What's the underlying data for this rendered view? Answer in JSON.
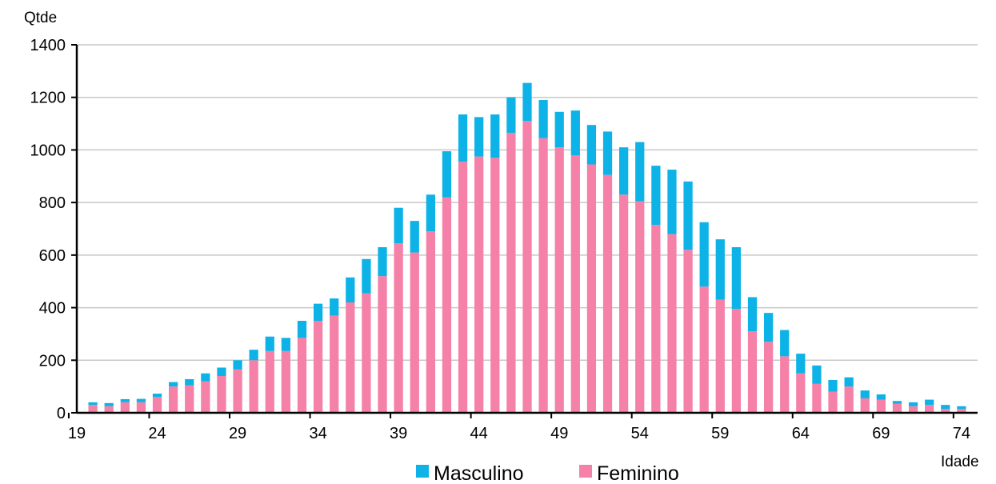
{
  "chart_data": {
    "type": "bar",
    "stacked": true,
    "ylabel": "Qtde",
    "xlabel": "Idade",
    "ylim": [
      0,
      1400
    ],
    "yticks": [
      0,
      200,
      400,
      600,
      800,
      1000,
      1200,
      1400
    ],
    "xtick_labels": [
      "19",
      "24",
      "29",
      "34",
      "39",
      "44",
      "49",
      "54",
      "59",
      "64",
      "69",
      "74"
    ],
    "grid": true,
    "legend_position": "bottom",
    "categories": [
      20,
      21,
      22,
      23,
      24,
      25,
      26,
      27,
      28,
      29,
      30,
      31,
      32,
      33,
      34,
      35,
      36,
      37,
      38,
      39,
      40,
      41,
      42,
      43,
      44,
      45,
      46,
      47,
      48,
      49,
      50,
      51,
      52,
      53,
      54,
      55,
      56,
      57,
      58,
      59,
      60,
      61,
      62,
      63,
      64,
      65,
      66,
      67,
      68,
      69,
      70,
      71,
      72,
      73,
      74
    ],
    "series": [
      {
        "name": "Feminino",
        "color": "#F580A8",
        "values": [
          30,
          25,
          40,
          40,
          60,
          100,
          105,
          120,
          140,
          165,
          200,
          235,
          235,
          285,
          350,
          370,
          420,
          455,
          520,
          645,
          610,
          690,
          820,
          955,
          975,
          970,
          1065,
          1110,
          1045,
          1010,
          980,
          945,
          905,
          830,
          805,
          715,
          680,
          620,
          480,
          430,
          395,
          310,
          270,
          215,
          150,
          110,
          80,
          100,
          55,
          50,
          35,
          25,
          30,
          15,
          15
        ]
      },
      {
        "name": "Masculino",
        "color": "#0DB3E6",
        "values": [
          10,
          12,
          12,
          13,
          13,
          17,
          23,
          30,
          32,
          35,
          40,
          55,
          50,
          65,
          65,
          65,
          95,
          130,
          110,
          135,
          120,
          140,
          175,
          180,
          150,
          165,
          135,
          145,
          145,
          135,
          170,
          150,
          165,
          180,
          225,
          225,
          245,
          260,
          245,
          230,
          235,
          130,
          110,
          100,
          75,
          70,
          45,
          35,
          30,
          20,
          10,
          15,
          20,
          15,
          10
        ]
      }
    ]
  }
}
